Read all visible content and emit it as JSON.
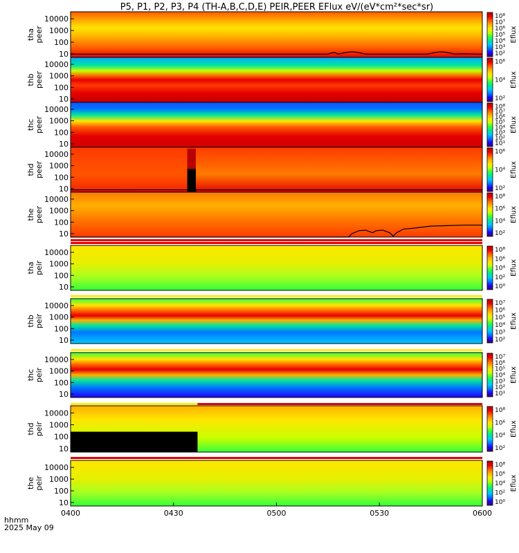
{
  "title": "P5, P1, P2, P3, P4 (TH-A,B,C,D,E) PEIR,PEER EFlux eV/(eV*cm²*sec*sr)",
  "footer": {
    "label": "hhmm",
    "date": "2025 May 09"
  },
  "colorbar_label": "Eflux",
  "colorscale": [
    "#3b006a",
    "#2200ff",
    "#0077ff",
    "#00c8ff",
    "#00e69c",
    "#35ff3b",
    "#c8ff00",
    "#ffe600",
    "#ffb000",
    "#ff5a00",
    "#e60000",
    "#b80000"
  ],
  "chart_data": {
    "type": "heatmap",
    "x_ticks": [
      "0400",
      "0430",
      "0500",
      "0530",
      "0600"
    ],
    "x_range_minutes": [
      0,
      120
    ],
    "panels": [
      {
        "probe": "tha",
        "species": "peer",
        "ylabel_top": "tha",
        "ylabel_bottom": "peer",
        "yticks": [
          "10000",
          "1000",
          "100",
          "10"
        ],
        "cbar_ticks": [
          "10⁸",
          "10⁷",
          "10⁶",
          "10⁵",
          "10⁴",
          "10³",
          "10²"
        ],
        "line": [
          [
            0,
            9.5
          ],
          [
            75,
            9.5
          ],
          [
            76,
            12
          ],
          [
            77,
            13
          ],
          [
            78,
            9.5
          ],
          [
            80,
            13
          ],
          [
            82,
            15
          ],
          [
            84,
            13
          ],
          [
            86,
            9.5
          ],
          [
            104,
            9.5
          ],
          [
            106,
            13
          ],
          [
            108,
            15
          ],
          [
            110,
            13
          ],
          [
            112,
            9.5
          ],
          [
            114,
            10
          ],
          [
            120,
            9.5
          ]
        ]
      },
      {
        "probe": "thb",
        "species": "peer",
        "ylabel_top": "thb",
        "ylabel_bottom": "peer",
        "yticks": [
          "10000",
          "1000",
          "100",
          "10"
        ],
        "cbar_ticks": [
          "10⁶",
          "10⁴",
          "10²"
        ],
        "line": []
      },
      {
        "probe": "thc",
        "species": "peer",
        "ylabel_top": "thc",
        "ylabel_bottom": "peer",
        "yticks": [
          "10000",
          "1000",
          "100",
          "10"
        ],
        "cbar_ticks": [
          "10⁸",
          "10⁷",
          "10⁶",
          "10⁵",
          "10⁴",
          "10³",
          "10²",
          "10¹"
        ],
        "line": []
      },
      {
        "probe": "thd",
        "species": "peer",
        "ylabel_top": "thd",
        "ylabel_bottom": "peer",
        "yticks": [
          "10000",
          "1000",
          "100",
          "10"
        ],
        "cbar_ticks": [
          "10⁶",
          "10⁴",
          "10²"
        ],
        "line": [
          [
            0,
            8
          ],
          [
            34,
            8
          ],
          [
            34.1,
            6
          ],
          [
            36.5,
            6
          ],
          [
            36.6,
            8
          ],
          [
            120,
            8
          ]
        ]
      },
      {
        "probe": "the",
        "species": "peer",
        "ylabel_top": "the",
        "ylabel_bottom": "peer",
        "yticks": [
          "10000",
          "1000",
          "100",
          "10"
        ],
        "cbar_ticks": [
          "10⁸",
          "10⁶",
          "10⁴",
          "10²"
        ],
        "line": [
          [
            0,
            5
          ],
          [
            81,
            5
          ],
          [
            82,
            10
          ],
          [
            84,
            18
          ],
          [
            86,
            20
          ],
          [
            88,
            12
          ],
          [
            89,
            18
          ],
          [
            91,
            20
          ],
          [
            93,
            12
          ],
          [
            94,
            6
          ],
          [
            95,
            12
          ],
          [
            97,
            25
          ],
          [
            100,
            30
          ],
          [
            102,
            35
          ],
          [
            105,
            45
          ],
          [
            110,
            50
          ],
          [
            115,
            55
          ],
          [
            120,
            55
          ]
        ]
      },
      {
        "probe": "tha",
        "species": "peir",
        "ylabel_top": "tha",
        "ylabel_bottom": "peir",
        "yticks": [
          "10000",
          "1000",
          "100",
          "10"
        ],
        "cbar_ticks": [
          "10⁸",
          "10⁶",
          "10⁴",
          "10²",
          "10⁰"
        ],
        "line": []
      },
      {
        "probe": "thb",
        "species": "peir",
        "ylabel_top": "thb",
        "ylabel_bottom": "peir",
        "yticks": [
          "10000",
          "1000",
          "100",
          "10"
        ],
        "cbar_ticks": [
          "10⁷",
          "10⁶",
          "10⁵",
          "10⁴",
          "10³",
          "10²"
        ],
        "line": []
      },
      {
        "probe": "thc",
        "species": "peir",
        "ylabel_top": "thc",
        "ylabel_bottom": "peir",
        "yticks": [
          "10000",
          "1000",
          "100",
          "10"
        ],
        "cbar_ticks": [
          "10⁷",
          "10⁶",
          "10⁵",
          "10⁴",
          "10³",
          "10²",
          "10¹"
        ],
        "line": []
      },
      {
        "probe": "thd",
        "species": "peir",
        "ylabel_top": "thd",
        "ylabel_bottom": "peir",
        "yticks": [
          "10000",
          "1000",
          "100",
          "10"
        ],
        "cbar_ticks": [
          "10⁸",
          "10⁶",
          "10⁴",
          "10²"
        ],
        "line": []
      },
      {
        "probe": "the",
        "species": "peir",
        "ylabel_top": "the",
        "ylabel_bottom": "peir",
        "yticks": [
          "10000",
          "1000",
          "100",
          "10"
        ],
        "cbar_ticks": [
          "10⁸",
          "10⁶",
          "10⁴",
          "10²",
          "10⁰"
        ],
        "line": []
      }
    ]
  }
}
